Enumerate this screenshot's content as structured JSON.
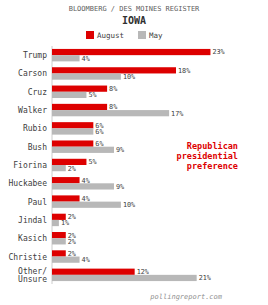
{
  "chart_data": {
    "type": "bar",
    "orientation": "horizontal",
    "title": "IOWA",
    "subtitle": "BLOOMBERG / DES MOINES REGISTER",
    "annotations": [
      "Republican\npresidential\npreference",
      "pollingreport.com"
    ],
    "categories": [
      "Trump",
      "Carson",
      "Cruz",
      "Walker",
      "Rubio",
      "Bush",
      "Fiorina",
      "Huckabee",
      "Paul",
      "Jindal",
      "Kasich",
      "Christie",
      "Other/\nUnsure"
    ],
    "series": [
      {
        "name": "August",
        "color": "#dd0000",
        "values": [
          23,
          18,
          8,
          8,
          6,
          6,
          5,
          4,
          4,
          2,
          2,
          2,
          12
        ],
        "value_labels": [
          "23%",
          "18%",
          "8%",
          "8%",
          "6%",
          "6%",
          "5%",
          "4%",
          "4%",
          "2%",
          "2%",
          "2%",
          "12%"
        ]
      },
      {
        "name": "May",
        "color": "#b8b8b8",
        "values": [
          4,
          10,
          5,
          17,
          6,
          9,
          2,
          9,
          10,
          1,
          2,
          4,
          21
        ],
        "value_labels": [
          "4%",
          "10%",
          "5%",
          "17%",
          "6%",
          "9%",
          "2%",
          "9%",
          "10%",
          "1%",
          "2%",
          "4%",
          "21%"
        ]
      }
    ],
    "xlim": [
      0,
      27
    ],
    "data_labels": true,
    "tick_labels": false,
    "grid": false,
    "legend": "top"
  }
}
